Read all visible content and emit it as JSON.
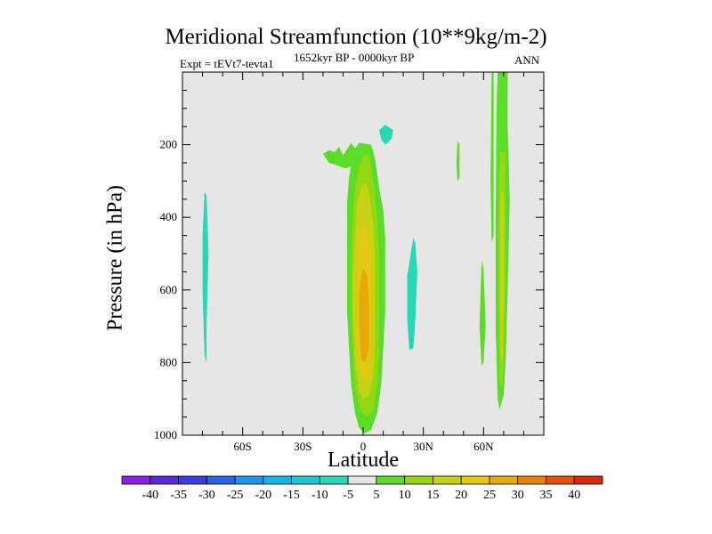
{
  "chart_data": {
    "type": "contour",
    "title": "Meridional Streamfunction (10**9kg/m-2)",
    "subtitle_left": "Expt = tEVt7-tevta1",
    "subtitle_center": "1652kyr BP - 0000kyr BP",
    "subtitle_right": "ANN",
    "xlabel": "Latitude",
    "ylabel": "Pressure (in hPa)",
    "xlim": [
      -90,
      90
    ],
    "ylim": [
      1000,
      0
    ],
    "x_ticks": [
      {
        "value": -60,
        "label": "60S"
      },
      {
        "value": -30,
        "label": "30S"
      },
      {
        "value": 0,
        "label": "0"
      },
      {
        "value": 30,
        "label": "30N"
      },
      {
        "value": 60,
        "label": "60N"
      }
    ],
    "y_ticks": [
      {
        "value": 200,
        "label": "200"
      },
      {
        "value": 400,
        "label": "400"
      },
      {
        "value": 600,
        "label": "600"
      },
      {
        "value": 800,
        "label": "800"
      },
      {
        "value": 1000,
        "label": "1000"
      }
    ],
    "colorbar": {
      "labels": [
        "-40",
        "-35",
        "-30",
        "-25",
        "-20",
        "-15",
        "-10",
        "-5",
        "5",
        "10",
        "15",
        "20",
        "25",
        "30",
        "35",
        "40"
      ],
      "colors": [
        "#8c1ee6",
        "#5a28dc",
        "#3c3ce6",
        "#2864e6",
        "#1e96f0",
        "#14b4e6",
        "#19c8d2",
        "#28d7b4",
        "#e6e6e6",
        "#5adc28",
        "#96d714",
        "#c8d214",
        "#e6c814",
        "#e6aa0a",
        "#e6820a",
        "#e6500a",
        "#dc280a"
      ]
    },
    "features": [
      {
        "name": "tropical-cell-outer",
        "level": 5,
        "color": "#5adc28",
        "points": [
          [
            -10,
            230
          ],
          [
            -6,
            195
          ],
          [
            -4,
            210
          ],
          [
            -2,
            195
          ],
          [
            4,
            200
          ],
          [
            6,
            240
          ],
          [
            8,
            320
          ],
          [
            10,
            380
          ],
          [
            11,
            460
          ],
          [
            11,
            560
          ],
          [
            11,
            660
          ],
          [
            10,
            760
          ],
          [
            9,
            860
          ],
          [
            7,
            940
          ],
          [
            4,
            985
          ],
          [
            1,
            995
          ],
          [
            -2,
            980
          ],
          [
            -4,
            940
          ],
          [
            -6,
            860
          ],
          [
            -7,
            760
          ],
          [
            -8,
            660
          ],
          [
            -8,
            560
          ],
          [
            -8,
            460
          ],
          [
            -8,
            360
          ],
          [
            -7,
            290
          ],
          [
            -6,
            260
          ],
          [
            -9,
            265
          ],
          [
            -14,
            255
          ],
          [
            -17,
            250
          ],
          [
            -20,
            225
          ],
          [
            -17,
            215
          ],
          [
            -14,
            220
          ],
          [
            -12,
            205
          ]
        ]
      },
      {
        "name": "tropical-cell-10",
        "level": 10,
        "color": "#96d714",
        "points": [
          [
            -2,
            260
          ],
          [
            1,
            225
          ],
          [
            3,
            230
          ],
          [
            5,
            300
          ],
          [
            7,
            400
          ],
          [
            8,
            520
          ],
          [
            8,
            640
          ],
          [
            8,
            760
          ],
          [
            7,
            860
          ],
          [
            5,
            930
          ],
          [
            2,
            950
          ],
          [
            -1,
            935
          ],
          [
            -4,
            870
          ],
          [
            -5,
            760
          ],
          [
            -6,
            640
          ],
          [
            -6,
            520
          ],
          [
            -5,
            400
          ],
          [
            -4,
            320
          ]
        ]
      },
      {
        "name": "tropical-cell-15",
        "level": 15,
        "color": "#c8d214",
        "points": [
          [
            -1,
            320
          ],
          [
            1,
            300
          ],
          [
            3,
            330
          ],
          [
            5,
            420
          ],
          [
            6,
            520
          ],
          [
            6,
            640
          ],
          [
            6,
            760
          ],
          [
            5,
            840
          ],
          [
            3,
            890
          ],
          [
            0,
            900
          ],
          [
            -2,
            880
          ],
          [
            -4,
            800
          ],
          [
            -5,
            680
          ],
          [
            -5,
            560
          ],
          [
            -4,
            440
          ],
          [
            -3,
            360
          ]
        ]
      },
      {
        "name": "tropical-cell-20",
        "level": 20,
        "color": "#e6c814",
        "points": [
          [
            0,
            420
          ],
          [
            2,
            430
          ],
          [
            4,
            520
          ],
          [
            4,
            640
          ],
          [
            4,
            760
          ],
          [
            3,
            830
          ],
          [
            1,
            845
          ],
          [
            -1,
            835
          ],
          [
            -3,
            760
          ],
          [
            -3,
            640
          ],
          [
            -3,
            520
          ],
          [
            -2,
            450
          ]
        ]
      },
      {
        "name": "tropical-cell-25",
        "level": 25,
        "color": "#e6aa0a",
        "points": [
          [
            0,
            540
          ],
          [
            2,
            560
          ],
          [
            3,
            650
          ],
          [
            3,
            760
          ],
          [
            1,
            800
          ],
          [
            -1,
            790
          ],
          [
            -2,
            700
          ],
          [
            -2,
            600
          ]
        ]
      },
      {
        "name": "neg-tropic-top",
        "level": -5,
        "color": "#28d7b4",
        "points": [
          [
            8,
            160
          ],
          [
            11,
            145
          ],
          [
            15,
            160
          ],
          [
            14,
            185
          ],
          [
            11,
            200
          ],
          [
            9,
            185
          ]
        ]
      },
      {
        "name": "neg-sh-sliver",
        "level": -5,
        "color": "#28d7b4",
        "points": [
          [
            -79,
            330
          ],
          [
            -78,
            340
          ],
          [
            -77,
            500
          ],
          [
            -78,
            700
          ],
          [
            -78,
            800
          ],
          [
            -79,
            780
          ],
          [
            -80,
            600
          ],
          [
            -80,
            450
          ]
        ]
      },
      {
        "name": "neg-nh-sliver",
        "level": -5,
        "color": "#28d7b4",
        "points": [
          [
            25,
            455
          ],
          [
            26,
            470
          ],
          [
            27,
            550
          ],
          [
            26,
            680
          ],
          [
            25,
            760
          ],
          [
            23,
            765
          ],
          [
            22,
            680
          ],
          [
            22,
            560
          ]
        ]
      },
      {
        "name": "pos-45n-streak",
        "level": 5,
        "color": "#5adc28",
        "points": [
          [
            47,
            190
          ],
          [
            48,
            200
          ],
          [
            48,
            290
          ],
          [
            47,
            300
          ],
          [
            46.5,
            250
          ]
        ]
      },
      {
        "name": "pos-60n-sliver",
        "level": 5,
        "color": "#5adc28",
        "points": [
          [
            59,
            520
          ],
          [
            60,
            540
          ],
          [
            61,
            700
          ],
          [
            60,
            800
          ],
          [
            59,
            810
          ],
          [
            58,
            700
          ]
        ]
      },
      {
        "name": "pos-64n-thin",
        "level": 5,
        "color": "#5adc28",
        "points": [
          [
            64,
            0
          ],
          [
            65,
            0
          ],
          [
            65,
            450
          ],
          [
            64,
            470
          ],
          [
            63.5,
            300
          ]
        ]
      },
      {
        "name": "high-lat-column-outer",
        "level": 5,
        "color": "#5adc28",
        "points": [
          [
            67,
            0
          ],
          [
            72,
            0
          ],
          [
            72,
            150
          ],
          [
            73,
            350
          ],
          [
            72,
            600
          ],
          [
            71,
            800
          ],
          [
            70,
            890
          ],
          [
            68,
            930
          ],
          [
            67,
            900
          ],
          [
            66,
            700
          ],
          [
            66,
            400
          ],
          [
            66.5,
            100
          ]
        ]
      },
      {
        "name": "high-lat-column-10",
        "level": 10,
        "color": "#96d714",
        "points": [
          [
            68,
            220
          ],
          [
            71,
            220
          ],
          [
            71,
            400
          ],
          [
            71,
            600
          ],
          [
            70,
            820
          ],
          [
            69,
            870
          ],
          [
            68,
            860
          ],
          [
            67.5,
            620
          ],
          [
            67.5,
            400
          ]
        ]
      },
      {
        "name": "high-lat-column-15",
        "level": 15,
        "color": "#c8d214",
        "points": [
          [
            68.5,
            330
          ],
          [
            70,
            330
          ],
          [
            70,
            600
          ],
          [
            69.5,
            790
          ],
          [
            68.5,
            800
          ],
          [
            68.3,
            560
          ]
        ]
      }
    ]
  }
}
